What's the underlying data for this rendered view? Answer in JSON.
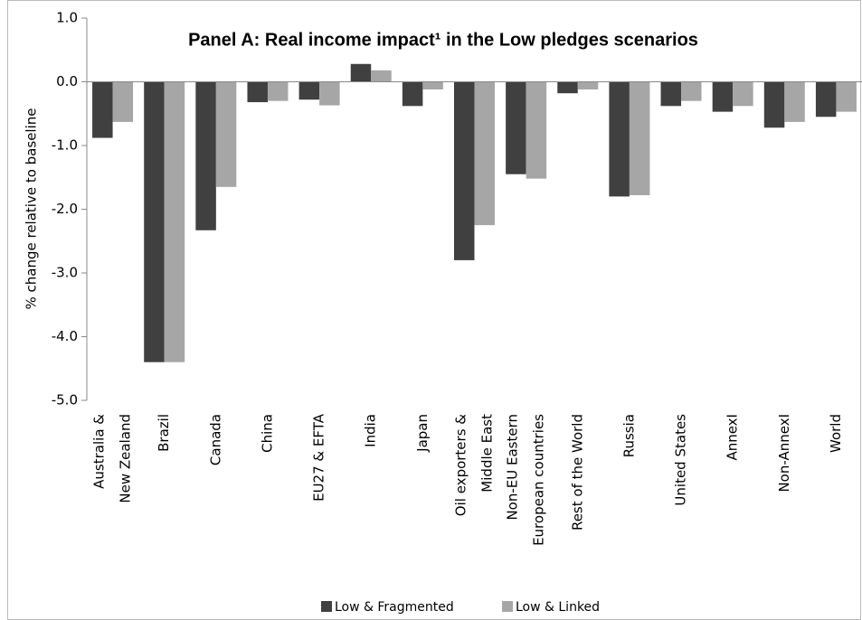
{
  "chart_data": {
    "type": "bar",
    "title": "Panel A: Real income impact¹ in the Low pledges scenarios",
    "y_label": "% change relative to baseline",
    "categories": [
      [
        "Australia &",
        "New Zealand"
      ],
      [
        "Brazil"
      ],
      [
        "Canada"
      ],
      [
        "China"
      ],
      [
        "EU27 & EFTA"
      ],
      [
        "India"
      ],
      [
        "Japan"
      ],
      [
        "Oil exporters &",
        "Middle East"
      ],
      [
        "Non-EU Eastern",
        "European countries"
      ],
      [
        "Rest of the World"
      ],
      [
        "Russia"
      ],
      [
        "United States"
      ],
      [
        "AnnexI"
      ],
      [
        "Non-AnnexI"
      ],
      [
        "World"
      ]
    ],
    "series": [
      {
        "name": "Low & Fragmented",
        "color": "#404040",
        "values": [
          -0.88,
          -4.4,
          -2.33,
          -0.32,
          -0.28,
          0.28,
          -0.38,
          -2.8,
          -1.45,
          -0.18,
          -1.8,
          -0.38,
          -0.47,
          -0.72,
          -0.55
        ]
      },
      {
        "name": "Low & Linked",
        "color": "#a6a6a6",
        "values": [
          -0.63,
          -4.4,
          -1.65,
          -0.3,
          -0.37,
          0.18,
          -0.12,
          -2.25,
          -1.52,
          -0.12,
          -1.78,
          -0.3,
          -0.38,
          -0.63,
          -0.47
        ]
      }
    ],
    "ylim": [
      -5,
      1
    ],
    "yticks": [
      {
        "value": -5,
        "label": "-5.0"
      },
      {
        "value": -4,
        "label": "-4.0"
      },
      {
        "value": -3,
        "label": "-3.0"
      },
      {
        "value": -2,
        "label": "-2.0"
      },
      {
        "value": -1,
        "label": "-1.0"
      },
      {
        "value": 0,
        "label": "0.0"
      },
      {
        "value": 1,
        "label": "1.0"
      }
    ],
    "legend": "bottom"
  }
}
